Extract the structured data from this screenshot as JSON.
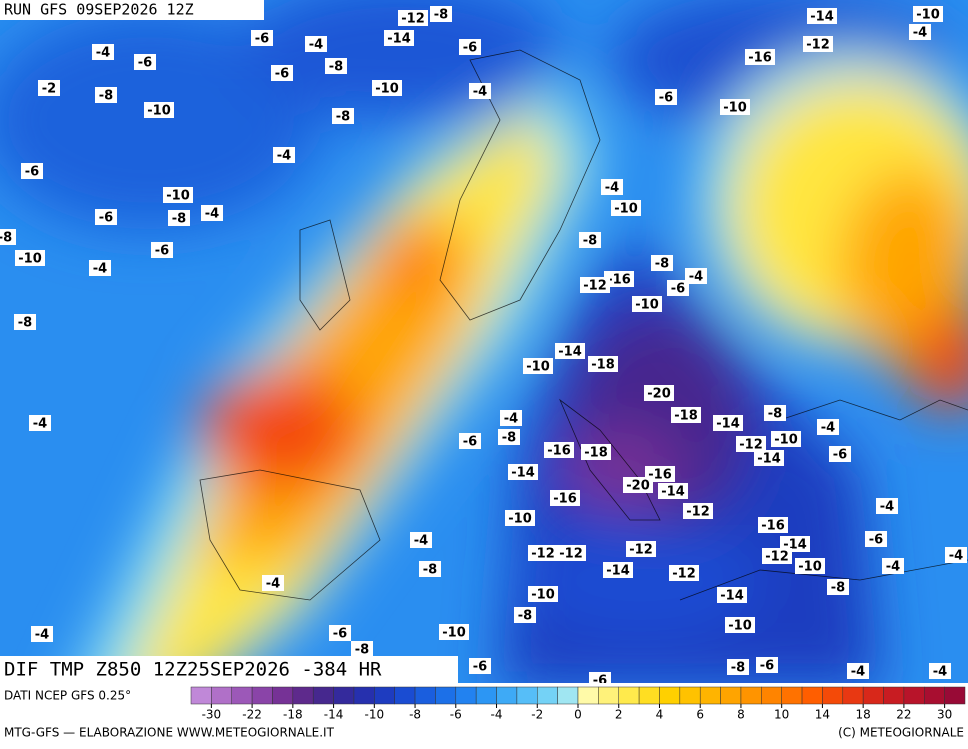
{
  "header": {
    "run": "RUN GFS 09SEP2026 12Z"
  },
  "map_title": "DIF TMP Z850 12Z25SEP2026 -384 HR",
  "contour_labels": [
    -12,
    -8,
    -14,
    -10,
    -4,
    -6,
    -4,
    -14,
    -6,
    -12,
    -4,
    -6,
    -6,
    -8,
    -16,
    -2,
    -8,
    -10,
    -4,
    -6,
    -10,
    -10,
    -8,
    -4,
    -6,
    -10,
    -4,
    -6,
    -8,
    -4,
    -10,
    -8,
    -8,
    -6,
    -10,
    -4,
    -8,
    -4,
    -16,
    -12,
    -6,
    -10,
    -8,
    -14,
    -18,
    -10,
    -20,
    -4,
    -18,
    -14,
    -8,
    -4,
    -4,
    -6,
    -8,
    -12,
    -10,
    -16,
    -18,
    -14,
    -6,
    -16,
    -14,
    -20,
    -14,
    -16,
    -4,
    -12,
    -10,
    -16,
    -4,
    -6,
    -14,
    -12,
    -12,
    -12,
    -12,
    -4,
    -8,
    -14,
    -12,
    -10,
    -4,
    -4,
    -8,
    -10,
    -14,
    -8,
    -10,
    -6,
    -10,
    -4,
    -8,
    -6,
    -8,
    -6,
    -4,
    -4,
    -6
  ],
  "legend": {
    "source": "DATI NCEP GFS 0.25°",
    "colors": [
      "#c088d8",
      "#b070c8",
      "#9c58b8",
      "#8a44a8",
      "#763296",
      "#5e2a8c",
      "#46288e",
      "#342a9c",
      "#2630ae",
      "#1e3cc0",
      "#1a4cd2",
      "#1a5ede",
      "#1c70e8",
      "#2282f0",
      "#2c96f4",
      "#3eaaf6",
      "#56bef8",
      "#74d2f6",
      "#a0e6f2",
      "#fffaa8",
      "#fff27a",
      "#ffea4c",
      "#ffde22",
      "#ffd000",
      "#ffc200",
      "#ffb400",
      "#ffa400",
      "#ff9400",
      "#ff8400",
      "#ff7200",
      "#ff5e00",
      "#f44a08",
      "#e83812",
      "#d8281a",
      "#c81c22",
      "#b8142a",
      "#a80e30",
      "#980a36"
    ],
    "labels": [
      -30,
      -22,
      -18,
      -14,
      -10,
      -8,
      -6,
      -4,
      -2,
      0,
      2,
      4,
      6,
      8,
      10,
      14,
      18,
      22,
      30
    ]
  },
  "footer": {
    "left": "MTG-GFS — ELABORAZIONE WWW.METEOGIORNALE.IT",
    "right": "(C) METEOGIORNALE"
  }
}
